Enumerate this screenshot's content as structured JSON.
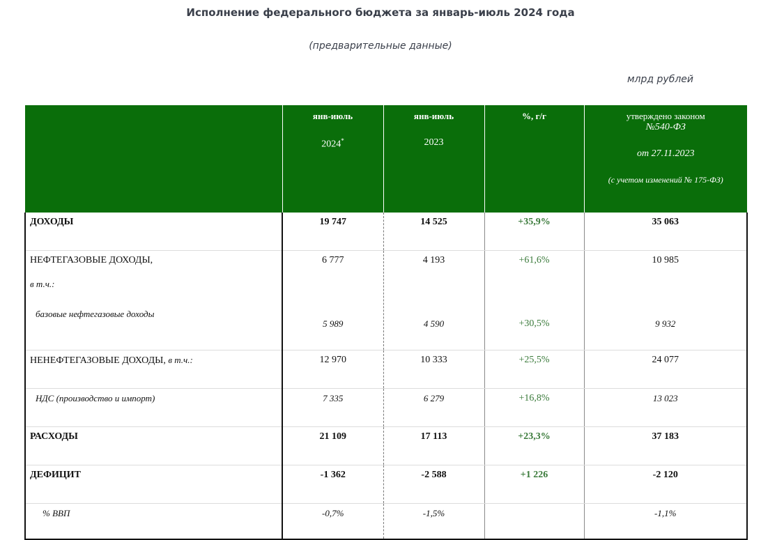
{
  "header": {
    "title": "Исполнение федерального бюджета за январь-июль 2024 года",
    "subtitle": "(предварительные данные)",
    "units": "млрд рублей"
  },
  "columns": {
    "c1_line1": "янв-июль",
    "c1_line2": "2024",
    "c1_mark": "*",
    "c2_line1": "янв-июль",
    "c2_line2": "2023",
    "c3_line1": "%, г/г",
    "c4_line1": "утверждено законом",
    "c4_line2": "№540-ФЗ",
    "c4_line3": "от 27.11.2023",
    "c4_line4": "(с учетом изменений № 175-ФЗ)"
  },
  "rows": {
    "income": {
      "label": "ДОХОДЫ",
      "v2024": "19 747",
      "v2023": "14 525",
      "pct": "+35,9%",
      "law": "35 063"
    },
    "oilgas": {
      "label": "НЕФТЕГАЗОВЫЕ ДОХОДЫ,",
      "note": "в т.ч.:",
      "v2024": "6 777",
      "v2023": "4 193",
      "pct": "+61,6%",
      "law": "10 985",
      "sub_label": "базовые нефтегазовые доходы",
      "sub_v2024": "5 989",
      "sub_v2023": "4 590",
      "sub_pct": "+30,5%",
      "sub_law": "9 932"
    },
    "nonoil": {
      "label": "НЕНЕФТЕГАЗОВЫЕ ДОХОДЫ,",
      "note": "в т.ч.:",
      "v2024": "12 970",
      "v2023": "10 333",
      "pct": "+25,5%",
      "law": "24 077"
    },
    "vat": {
      "label": "НДС (производство и импорт)",
      "v2024": "7 335",
      "v2023": "6 279",
      "pct": "+16,8%",
      "law": "13 023"
    },
    "expenses": {
      "label": "РАСХОДЫ",
      "v2024": "21 109",
      "v2023": "17 113",
      "pct": "+23,3%",
      "law": "37 183"
    },
    "deficit": {
      "label": "ДЕФИЦИТ",
      "v2024": "-1 362",
      "v2023": "-2 588",
      "pct": "+1 226",
      "law": "-2 120"
    },
    "gdp": {
      "label": "% ВВП",
      "v2024": "-0,7%",
      "v2023": "-1,5%",
      "pct": "",
      "law": "-1,1%"
    }
  }
}
